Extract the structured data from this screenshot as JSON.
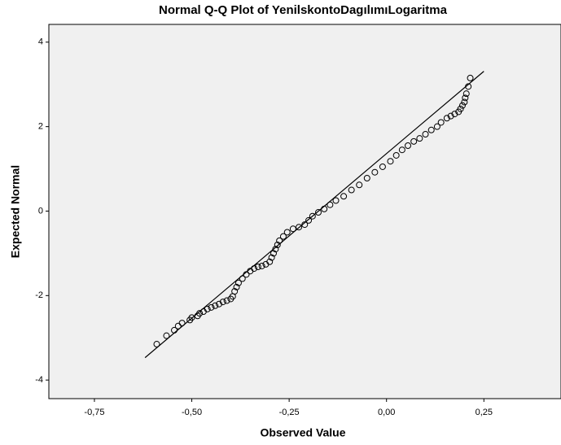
{
  "chart_data": {
    "type": "scatter",
    "title": "Normal Q-Q Plot of YenilskontoDagılımıLogaritma",
    "xlabel": "Observed Value",
    "ylabel": "Expected Normal",
    "xlim": [
      -0.867,
      0.448
    ],
    "ylim": [
      -4.44,
      4.42
    ],
    "xticks": [
      {
        "value": -0.75,
        "label": "-0,75"
      },
      {
        "value": -0.5,
        "label": "-0,50"
      },
      {
        "value": -0.25,
        "label": "-0,25"
      },
      {
        "value": 0,
        "label": "0,00"
      },
      {
        "value": 0.25,
        "label": "0,25"
      }
    ],
    "yticks": [
      4,
      2,
      0,
      -2,
      -4
    ],
    "color": "#000000",
    "background": "#f0f0f0",
    "x": [
      -0.59,
      -0.565,
      -0.545,
      -0.535,
      -0.525,
      -0.505,
      -0.5,
      -0.485,
      -0.48,
      -0.47,
      -0.46,
      -0.45,
      -0.44,
      -0.43,
      -0.42,
      -0.41,
      -0.4,
      -0.395,
      -0.39,
      -0.385,
      -0.38,
      -0.37,
      -0.36,
      -0.35,
      -0.34,
      -0.33,
      -0.32,
      -0.31,
      -0.3,
      -0.295,
      -0.29,
      -0.285,
      -0.28,
      -0.275,
      -0.265,
      -0.255,
      -0.24,
      -0.225,
      -0.21,
      -0.2,
      -0.19,
      -0.175,
      -0.16,
      -0.145,
      -0.13,
      -0.11,
      -0.09,
      -0.07,
      -0.05,
      -0.03,
      -0.01,
      0.01,
      0.025,
      0.04,
      0.055,
      0.07,
      0.085,
      0.1,
      0.115,
      0.13,
      0.14,
      0.155,
      0.165,
      0.175,
      0.185,
      0.19,
      0.195,
      0.2,
      0.202,
      0.205,
      0.21,
      0.215
    ],
    "values": [
      -3.15,
      -2.95,
      -2.82,
      -2.72,
      -2.65,
      -2.58,
      -2.52,
      -2.48,
      -2.42,
      -2.38,
      -2.32,
      -2.28,
      -2.24,
      -2.2,
      -2.15,
      -2.12,
      -2.08,
      -2.02,
      -1.9,
      -1.8,
      -1.7,
      -1.6,
      -1.5,
      -1.42,
      -1.36,
      -1.32,
      -1.3,
      -1.26,
      -1.2,
      -1.1,
      -1.0,
      -0.9,
      -0.8,
      -0.7,
      -0.6,
      -0.5,
      -0.42,
      -0.38,
      -0.32,
      -0.22,
      -0.12,
      -0.03,
      0.05,
      0.15,
      0.25,
      0.35,
      0.5,
      0.62,
      0.78,
      0.92,
      1.05,
      1.18,
      1.32,
      1.45,
      1.55,
      1.65,
      1.72,
      1.82,
      1.92,
      2.0,
      2.1,
      2.2,
      2.25,
      2.3,
      2.35,
      2.42,
      2.5,
      2.58,
      2.68,
      2.78,
      2.95,
      3.15
    ],
    "reference_line": {
      "x": [
        -0.62,
        0.25
      ],
      "y": [
        -3.47,
        3.31
      ]
    }
  }
}
